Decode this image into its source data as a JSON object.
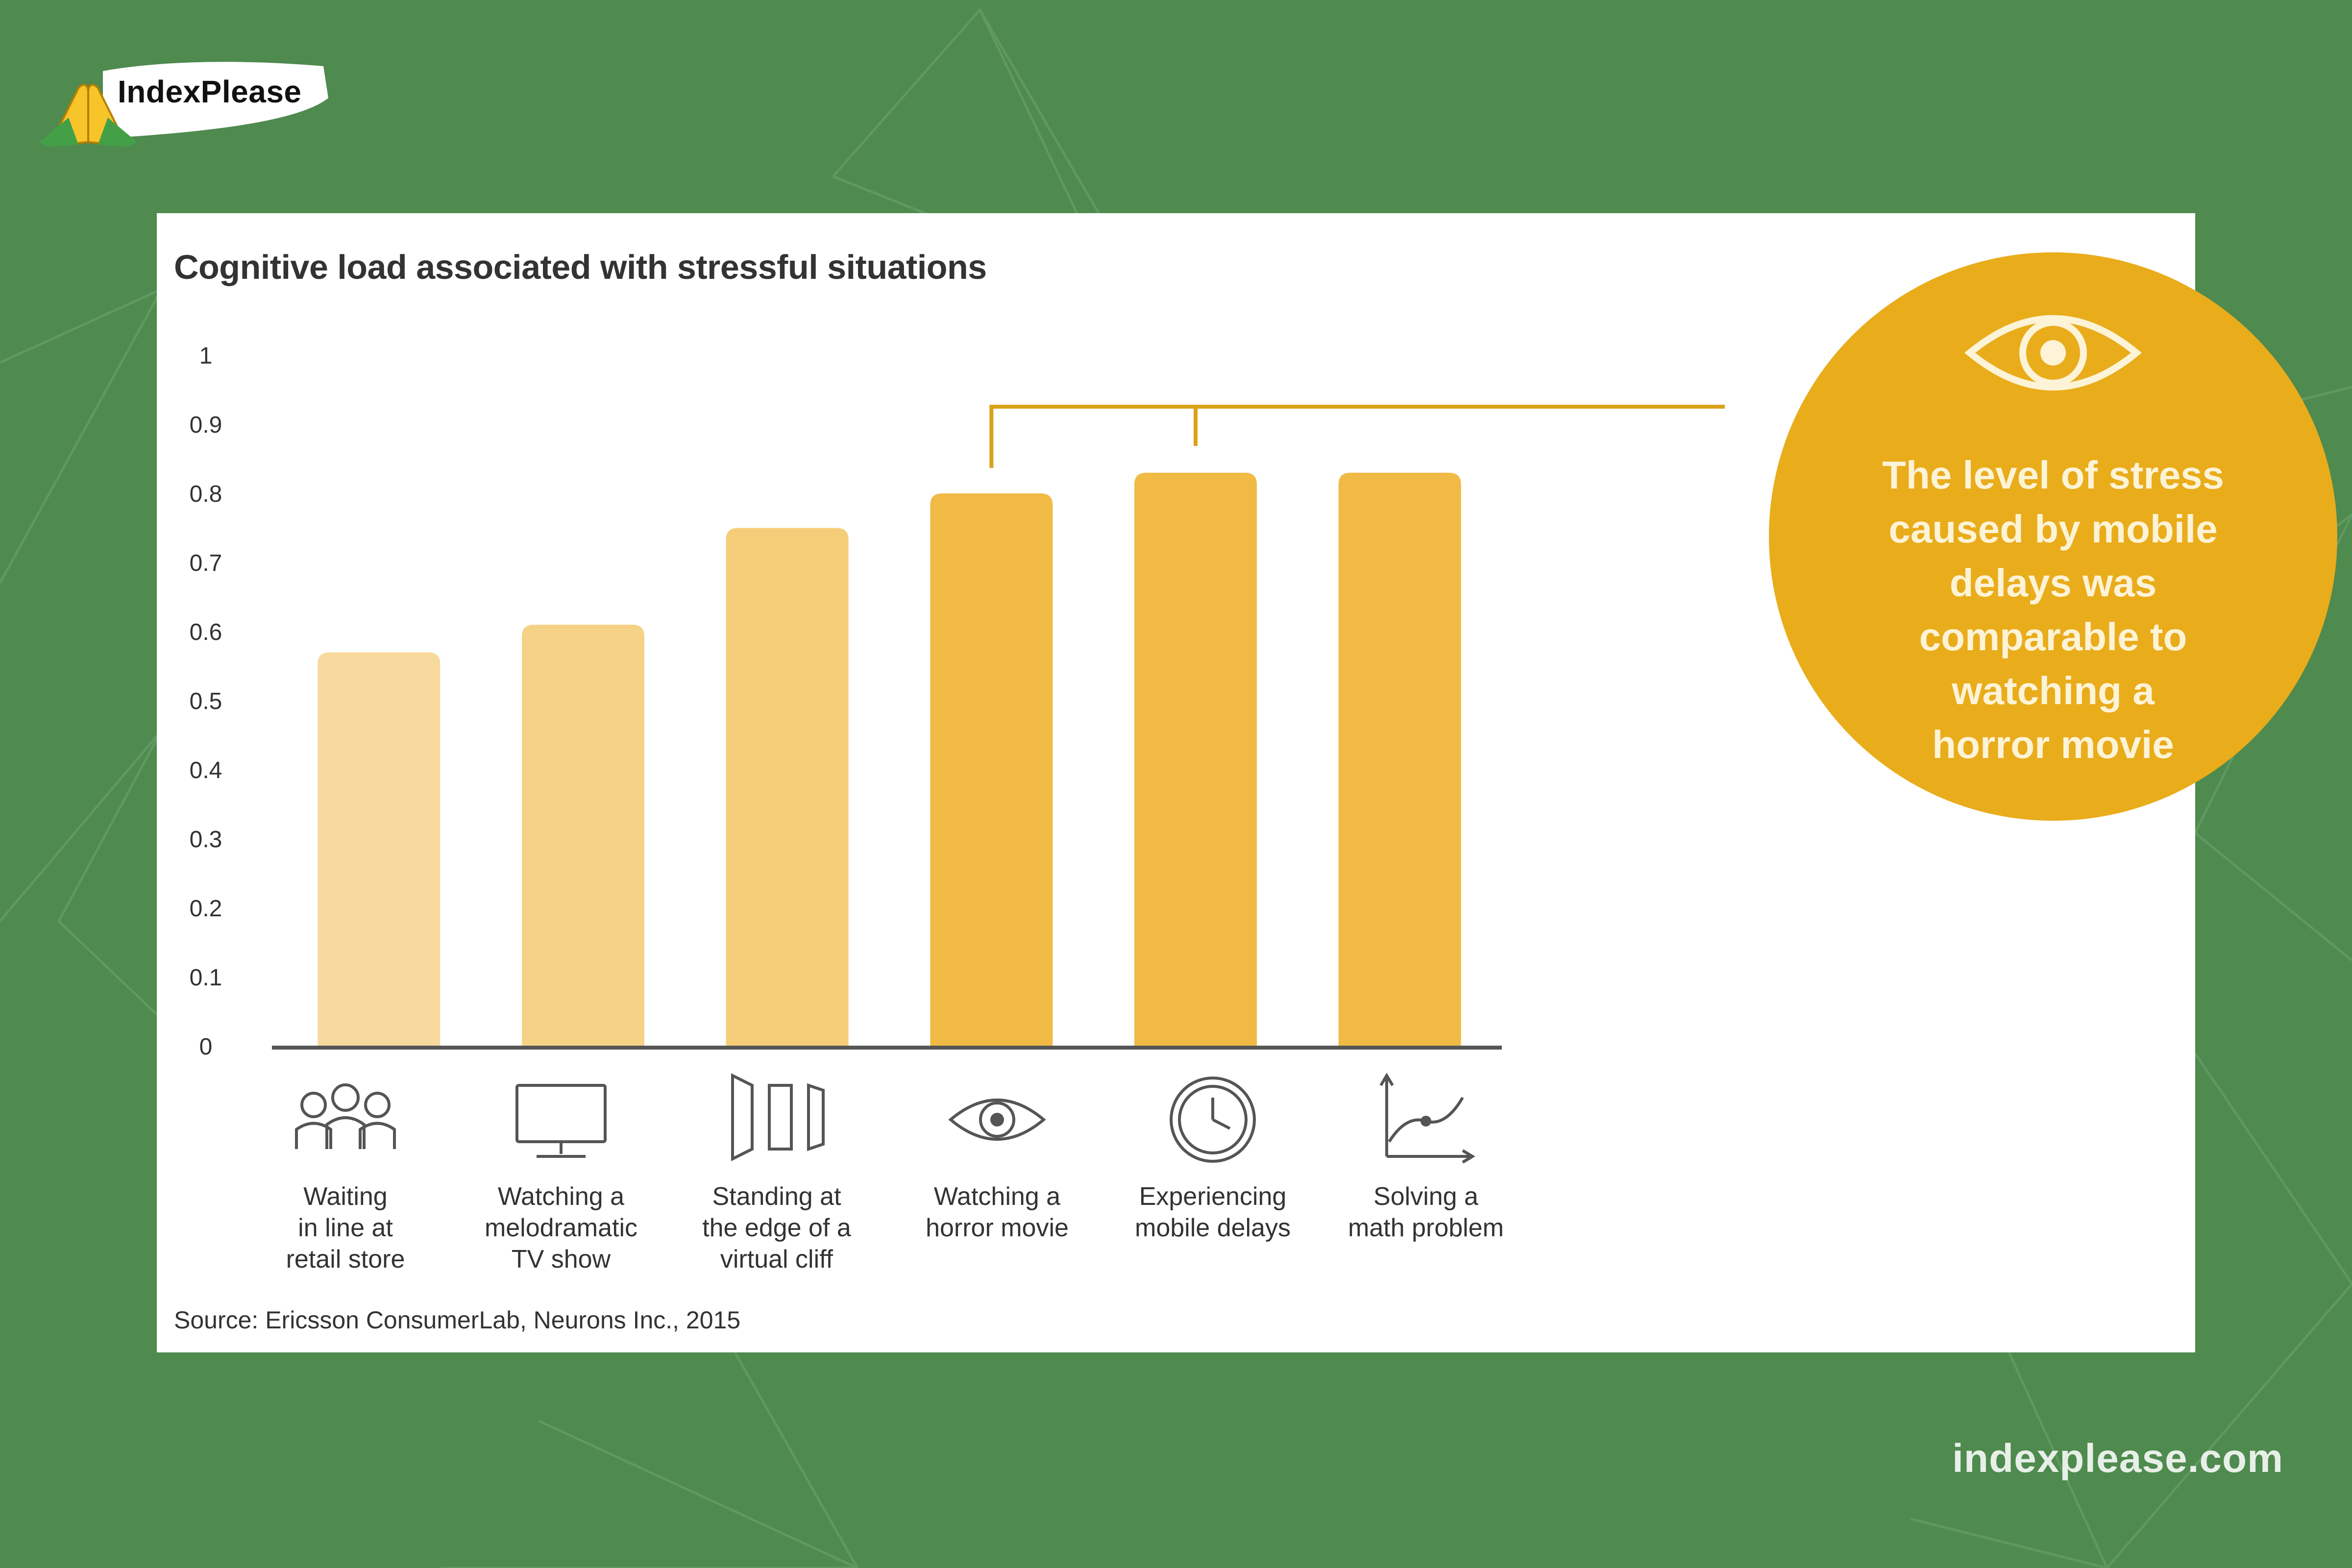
{
  "brand": {
    "name": "IndexPlease",
    "url": "indexplease.com"
  },
  "chart_data": {
    "type": "bar",
    "title": "Cognitive load associated with stressful situations",
    "categories": [
      "Waiting in line at retail store",
      "Watching a melodramatic TV show",
      "Standing at the edge of a virtual cliff",
      "Watching a horror movie",
      "Experiencing mobile delays",
      "Solving a math problem"
    ],
    "category_lines": [
      [
        "Waiting",
        "in line at",
        "retail store"
      ],
      [
        "Watching a",
        "melodramatic",
        "TV show"
      ],
      [
        "Standing at",
        "the edge of a",
        "virtual cliff"
      ],
      [
        "Watching a",
        "horror movie"
      ],
      [
        "Experiencing",
        "mobile delays"
      ],
      [
        "Solving a",
        "math problem"
      ]
    ],
    "category_icons": [
      "people-queue-icon",
      "tv-monitor-icon",
      "cliff-panels-icon",
      "eye-icon",
      "clock-icon",
      "graph-curve-icon"
    ],
    "values": [
      0.57,
      0.61,
      0.75,
      0.8,
      0.83,
      0.83
    ],
    "bar_colors": [
      "#f7d99d",
      "#f6d287",
      "#f5cd78",
      "#f0ba45",
      "#f0ba45",
      "#f0ba45"
    ],
    "ylim": [
      0,
      1
    ],
    "yticks": [
      "0",
      "0.1",
      "0.2",
      "0.3",
      "0.4",
      "0.5",
      "0.6",
      "0.7",
      "0.8",
      "0.9",
      "1"
    ],
    "xlabel": "",
    "ylabel": "",
    "grid": false,
    "callout": {
      "text": "The level of stress caused by mobile delays was comparable to watching a horror movie",
      "lines": [
        "The level of stress",
        "caused by mobile",
        "delays was",
        "comparable to",
        "watching a",
        "horror movie"
      ],
      "icon": "eye-icon",
      "color": "#e9ac1b",
      "links_categories": [
        3,
        4
      ]
    },
    "source": "Source: Ericsson ConsumerLab, Neurons Inc., 2015"
  }
}
